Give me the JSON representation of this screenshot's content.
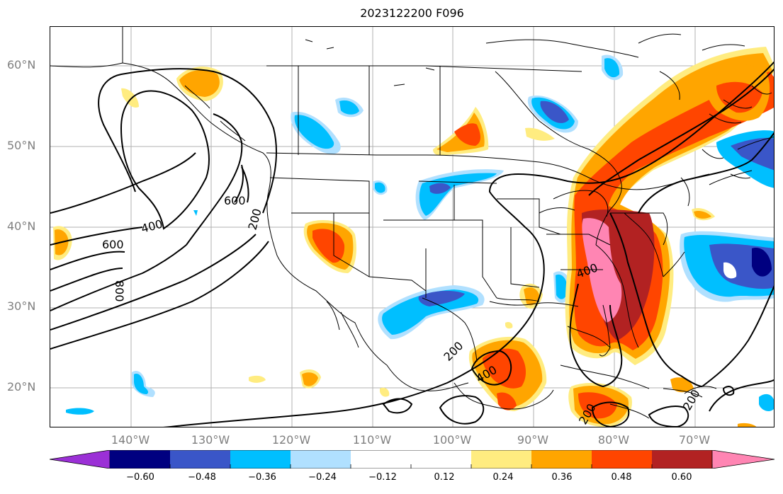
{
  "title": "2023122200 F096",
  "lat_labels": [
    "60°N",
    "50°N",
    "40°N",
    "30°N",
    "20°N"
  ],
  "lon_labels": [
    "140°W",
    "130°W",
    "120°W",
    "110°W",
    "100°W",
    "90°W",
    "80°W",
    "70°W"
  ],
  "contour_labels": [
    "600",
    "400",
    "600",
    "800",
    "200",
    "200",
    "400",
    "400",
    "200",
    "200"
  ],
  "colorbar": {
    "ticks": [
      "−0.60",
      "−0.48",
      "−0.36",
      "−0.24",
      "−0.12",
      "0.12",
      "0.24",
      "0.36",
      "0.48",
      "0.60"
    ],
    "colors": [
      "#9b30d6",
      "#000080",
      "#3a56c8",
      "#00bfff",
      "#b0e0ff",
      "#ffffff",
      "#ffec80",
      "#ffa500",
      "#ff4500",
      "#b22222",
      "#ff85b3"
    ]
  }
}
